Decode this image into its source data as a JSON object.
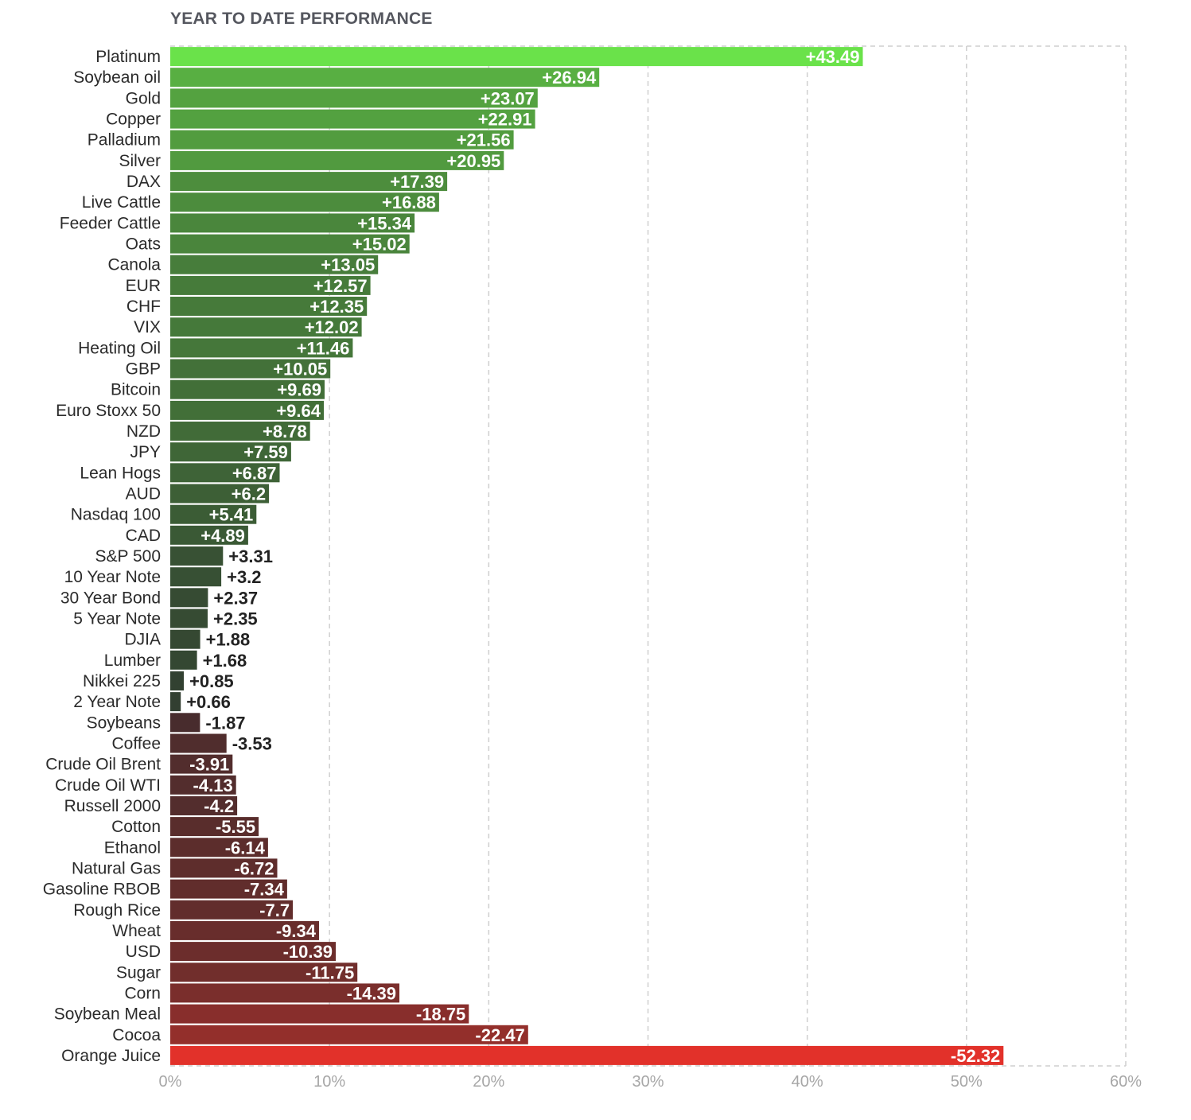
{
  "chart_data": {
    "type": "bar",
    "orientation": "horizontal",
    "title": "YEAR TO DATE PERFORMANCE",
    "xlabel": "",
    "ylabel": "",
    "xlim": [
      0,
      60
    ],
    "x_ticks": [
      "0%",
      "10%",
      "20%",
      "30%",
      "40%",
      "50%",
      "60%"
    ],
    "grid": true,
    "bar_length": "absolute value",
    "colors": {
      "positive_light": "#6ae24a",
      "positive_dark": "#2f3830",
      "negative_dark": "#3a2c2d",
      "negative_light": "#e2312a"
    },
    "categories": [
      "Platinum",
      "Soybean oil",
      "Gold",
      "Copper",
      "Palladium",
      "Silver",
      "DAX",
      "Live Cattle",
      "Feeder Cattle",
      "Oats",
      "Canola",
      "EUR",
      "CHF",
      "VIX",
      "Heating Oil",
      "GBP",
      "Bitcoin",
      "Euro Stoxx 50",
      "NZD",
      "JPY",
      "Lean Hogs",
      "AUD",
      "Nasdaq 100",
      "CAD",
      "S&P 500",
      "10 Year Note",
      "30 Year Bond",
      "5 Year Note",
      "DJIA",
      "Lumber",
      "Nikkei 225",
      "2 Year Note",
      "Soybeans",
      "Coffee",
      "Crude Oil Brent",
      "Crude Oil WTI",
      "Russell 2000",
      "Cotton",
      "Ethanol",
      "Natural Gas",
      "Gasoline RBOB",
      "Rough Rice",
      "Wheat",
      "USD",
      "Sugar",
      "Corn",
      "Soybean Meal",
      "Cocoa",
      "Orange Juice"
    ],
    "values": [
      43.49,
      26.94,
      23.07,
      22.91,
      21.56,
      20.95,
      17.39,
      16.88,
      15.34,
      15.02,
      13.05,
      12.57,
      12.35,
      12.02,
      11.46,
      10.05,
      9.69,
      9.64,
      8.78,
      7.59,
      6.87,
      6.2,
      5.41,
      4.89,
      3.31,
      3.2,
      2.37,
      2.35,
      1.88,
      1.68,
      0.85,
      0.66,
      -1.87,
      -3.53,
      -3.91,
      -4.13,
      -4.2,
      -5.55,
      -6.14,
      -6.72,
      -7.34,
      -7.7,
      -9.34,
      -10.39,
      -11.75,
      -14.39,
      -18.75,
      -22.47,
      -52.32
    ],
    "value_labels": [
      "+43.49",
      "+26.94",
      "+23.07",
      "+22.91",
      "+21.56",
      "+20.95",
      "+17.39",
      "+16.88",
      "+15.34",
      "+15.02",
      "+13.05",
      "+12.57",
      "+12.35",
      "+12.02",
      "+11.46",
      "+10.05",
      "+9.69",
      "+9.64",
      "+8.78",
      "+7.59",
      "+6.87",
      "+6.2",
      "+5.41",
      "+4.89",
      "+3.31",
      "+3.2",
      "+2.37",
      "+2.35",
      "+1.88",
      "+1.68",
      "+0.85",
      "+0.66",
      "-1.87",
      "-3.53",
      "-3.91",
      "-4.13",
      "-4.2",
      "-5.55",
      "-6.14",
      "-6.72",
      "-7.34",
      "-7.7",
      "-9.34",
      "-10.39",
      "-11.75",
      "-14.39",
      "-18.75",
      "-22.47",
      "-52.32"
    ]
  }
}
